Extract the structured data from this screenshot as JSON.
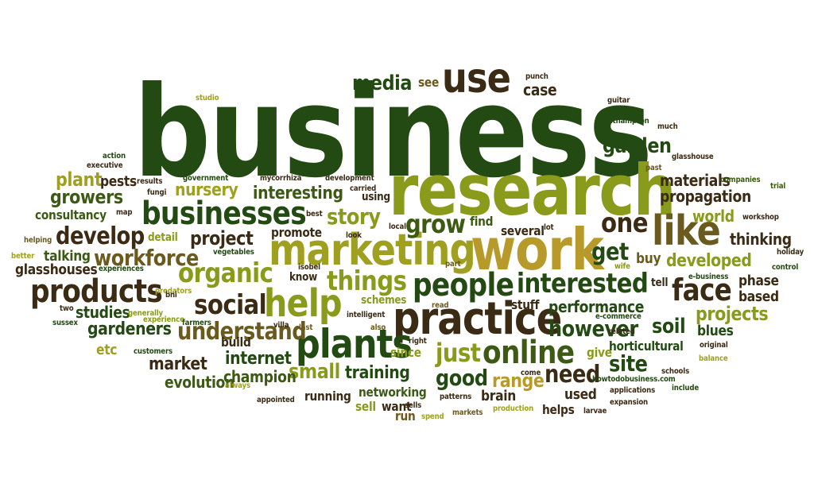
{
  "words": [
    {
      "text": "business",
      "color": "#234a12"
    },
    {
      "text": "research",
      "color": "#8a9a1a"
    },
    {
      "text": "work",
      "color": "#b89a2a"
    },
    {
      "text": "marketing",
      "color": "#a0a020"
    },
    {
      "text": "practice",
      "color": "#3b2a14"
    },
    {
      "text": "use",
      "color": "#3b2a14"
    },
    {
      "text": "plants",
      "color": "#234a12"
    },
    {
      "text": "businesses",
      "color": "#234a12"
    },
    {
      "text": "help",
      "color": "#8a9a1a"
    },
    {
      "text": "people",
      "color": "#234a12"
    },
    {
      "text": "products",
      "color": "#3b2a14"
    },
    {
      "text": "like",
      "color": "#6b5a1e"
    },
    {
      "text": "interested",
      "color": "#234a12"
    },
    {
      "text": "online",
      "color": "#3d5a14"
    },
    {
      "text": "media",
      "color": "#234a12"
    },
    {
      "text": "things",
      "color": "#8a9a1a"
    },
    {
      "text": "organic",
      "color": "#8a9a1a"
    },
    {
      "text": "social",
      "color": "#3b2a14"
    },
    {
      "text": "face",
      "color": "#3b2a14"
    },
    {
      "text": "understand",
      "color": "#6b5a1e"
    },
    {
      "text": "develop",
      "color": "#3b2a14"
    },
    {
      "text": "workforce",
      "color": "#6b5a1e"
    },
    {
      "text": "one",
      "color": "#3b2a14"
    },
    {
      "text": "grow",
      "color": "#3d5a14"
    },
    {
      "text": "story",
      "color": "#8a9a1a"
    },
    {
      "text": "garden",
      "color": "#234a12"
    },
    {
      "text": "get",
      "color": "#234a12"
    },
    {
      "text": "however",
      "color": "#234a12"
    },
    {
      "text": "just",
      "color": "#8a9a1a"
    },
    {
      "text": "soil",
      "color": "#234a12"
    },
    {
      "text": "interesting",
      "color": "#3d5a14"
    },
    {
      "text": "nursery",
      "color": "#a0a020"
    },
    {
      "text": "growers",
      "color": "#3d5a14"
    },
    {
      "text": "developed",
      "color": "#8a9a1a"
    },
    {
      "text": "projects",
      "color": "#8a9a1a"
    },
    {
      "text": "project",
      "color": "#3b2a14"
    },
    {
      "text": "performance",
      "color": "#234a12"
    },
    {
      "text": "site",
      "color": "#234a12"
    },
    {
      "text": "small",
      "color": "#8a9a1a"
    },
    {
      "text": "good",
      "color": "#234a12"
    },
    {
      "text": "need",
      "color": "#3b2a14"
    },
    {
      "text": "range",
      "color": "#b89a2a"
    },
    {
      "text": "training",
      "color": "#234a12"
    },
    {
      "text": "internet",
      "color": "#234a12"
    },
    {
      "text": "gardeners",
      "color": "#234a12"
    },
    {
      "text": "market",
      "color": "#3b2a14"
    },
    {
      "text": "champion",
      "color": "#3d5a14"
    },
    {
      "text": "evolution",
      "color": "#3d5a14"
    },
    {
      "text": "world",
      "color": "#8a9a1a"
    },
    {
      "text": "thinking",
      "color": "#3b2a14"
    },
    {
      "text": "materials",
      "color": "#3b2a14"
    },
    {
      "text": "propagation",
      "color": "#3b2a14"
    },
    {
      "text": "consultancy",
      "color": "#3d5a14"
    },
    {
      "text": "plant",
      "color": "#a0a020"
    },
    {
      "text": "pests",
      "color": "#3b2a14"
    },
    {
      "text": "talking",
      "color": "#3d5a14"
    },
    {
      "text": "glasshouses",
      "color": "#3b2a14"
    },
    {
      "text": "studies",
      "color": "#234a12"
    },
    {
      "text": "etc",
      "color": "#a0a020"
    },
    {
      "text": "case",
      "color": "#3b2a14"
    },
    {
      "text": "see",
      "color": "#6b5a1e"
    },
    {
      "text": "promote",
      "color": "#3b2a14"
    },
    {
      "text": "build",
      "color": "#3b2a14"
    },
    {
      "text": "running",
      "color": "#3b2a14"
    },
    {
      "text": "networking",
      "color": "#3d5a14"
    },
    {
      "text": "want",
      "color": "#3b2a14"
    },
    {
      "text": "run",
      "color": "#6b5a1e"
    },
    {
      "text": "sell",
      "color": "#8a9a1a"
    },
    {
      "text": "brain",
      "color": "#3b2a14"
    },
    {
      "text": "used",
      "color": "#3b2a14"
    },
    {
      "text": "helps",
      "color": "#3b2a14"
    },
    {
      "text": "horticultural",
      "color": "#234a12"
    },
    {
      "text": "blues",
      "color": "#234a12"
    },
    {
      "text": "based",
      "color": "#3b2a14"
    },
    {
      "text": "phase",
      "color": "#3b2a14"
    },
    {
      "text": "tell",
      "color": "#3b2a14"
    },
    {
      "text": "buy",
      "color": "#6b5a1e"
    },
    {
      "text": "several",
      "color": "#3b2a14"
    },
    {
      "text": "find",
      "color": "#3d5a14"
    },
    {
      "text": "using",
      "color": "#3b2a14"
    },
    {
      "text": "detail",
      "color": "#8a9a1a"
    },
    {
      "text": "schemes",
      "color": "#8a9a1a"
    },
    {
      "text": "stuff",
      "color": "#3b2a14"
    },
    {
      "text": "give",
      "color": "#8a9a1a"
    },
    {
      "text": "since",
      "color": "#8a9a1a"
    },
    {
      "text": "know",
      "color": "#3b2a14"
    },
    {
      "text": "studio",
      "color": "#a0a020"
    },
    {
      "text": "punch",
      "color": "#3b2a14"
    },
    {
      "text": "guitar",
      "color": "#3b2a14"
    },
    {
      "text": "southampton",
      "color": "#234a12"
    },
    {
      "text": "much",
      "color": "#3b2a14"
    },
    {
      "text": "glasshouse",
      "color": "#3b2a14"
    },
    {
      "text": "past",
      "color": "#6b5a1e"
    },
    {
      "text": "companies",
      "color": "#3d5a14"
    },
    {
      "text": "trial",
      "color": "#3d5a14"
    },
    {
      "text": "action",
      "color": "#234a12"
    },
    {
      "text": "executive",
      "color": "#3b2a14"
    },
    {
      "text": "results",
      "color": "#3b2a14"
    },
    {
      "text": "government",
      "color": "#234a12"
    },
    {
      "text": "mycorrhiza",
      "color": "#3b2a14"
    },
    {
      "text": "development",
      "color": "#3b2a14"
    },
    {
      "text": "carried",
      "color": "#3b2a14"
    },
    {
      "text": "fungi",
      "color": "#3b2a14"
    },
    {
      "text": "map",
      "color": "#3b2a14"
    },
    {
      "text": "best",
      "color": "#3b2a14"
    },
    {
      "text": "local",
      "color": "#3b2a14"
    },
    {
      "text": "lot",
      "color": "#3b2a14"
    },
    {
      "text": "look",
      "color": "#3b2a14"
    },
    {
      "text": "part",
      "color": "#6b5a1e"
    },
    {
      "text": "workshop",
      "color": "#3b2a14"
    },
    {
      "text": "helping",
      "color": "#6b5a1e"
    },
    {
      "text": "better",
      "color": "#a0a020"
    },
    {
      "text": "vegetables",
      "color": "#234a12"
    },
    {
      "text": "wife",
      "color": "#8a9a1a"
    },
    {
      "text": "holiday",
      "color": "#3b2a14"
    },
    {
      "text": "control",
      "color": "#234a12"
    },
    {
      "text": "experiences",
      "color": "#234a12"
    },
    {
      "text": "isobel",
      "color": "#3b2a14"
    },
    {
      "text": "predators",
      "color": "#a0a020"
    },
    {
      "text": "e-business",
      "color": "#234a12"
    },
    {
      "text": "two",
      "color": "#3b2a14"
    },
    {
      "text": "generally",
      "color": "#8a9a1a"
    },
    {
      "text": "bni",
      "color": "#3b2a14"
    },
    {
      "text": "read",
      "color": "#6b5a1e"
    },
    {
      "text": "e-commerce",
      "color": "#234a12"
    },
    {
      "text": "sussex",
      "color": "#234a12"
    },
    {
      "text": "experience",
      "color": "#8a9a1a"
    },
    {
      "text": "farmers",
      "color": "#234a12"
    },
    {
      "text": "villa",
      "color": "#3b2a14"
    },
    {
      "text": "intelligent",
      "color": "#3b2a14"
    },
    {
      "text": "last",
      "color": "#6b5a1e"
    },
    {
      "text": "also",
      "color": "#6b5a1e"
    },
    {
      "text": "right",
      "color": "#3b2a14"
    },
    {
      "text": "related",
      "color": "#3b2a14"
    },
    {
      "text": "original",
      "color": "#3b2a14"
    },
    {
      "text": "customers",
      "color": "#234a12"
    },
    {
      "text": "balance",
      "color": "#a0a020"
    },
    {
      "text": "come",
      "color": "#3b2a14"
    },
    {
      "text": "schools",
      "color": "#3b2a14"
    },
    {
      "text": "always",
      "color": "#a0a020"
    },
    {
      "text": "howtodobusiness.com",
      "color": "#234a12"
    },
    {
      "text": "applications",
      "color": "#3b2a14"
    },
    {
      "text": "include",
      "color": "#234a12"
    },
    {
      "text": "appointed",
      "color": "#3b2a14"
    },
    {
      "text": "patterns",
      "color": "#3b2a14"
    },
    {
      "text": "sells",
      "color": "#3b2a14"
    },
    {
      "text": "expansion",
      "color": "#3b2a14"
    },
    {
      "text": "spend",
      "color": "#a0a020"
    },
    {
      "text": "markets",
      "color": "#6b5a1e"
    },
    {
      "text": "production",
      "color": "#a0a020"
    },
    {
      "text": "larvae",
      "color": "#3b2a14"
    }
  ]
}
